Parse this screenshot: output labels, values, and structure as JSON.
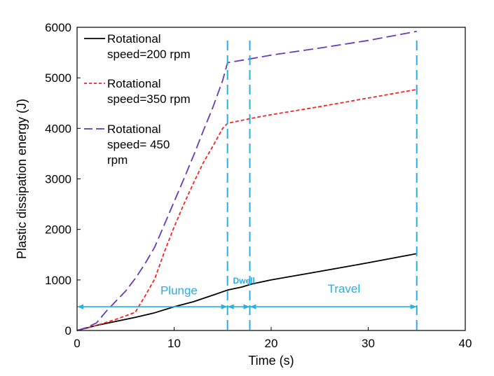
{
  "chart_data": {
    "type": "line",
    "xlabel": "Time (s)",
    "ylabel": "Plastic dissipation energy (J)",
    "xlim": [
      0,
      40
    ],
    "ylim": [
      0,
      6000
    ],
    "xticks": [
      0,
      10,
      20,
      30,
      40
    ],
    "yticks": [
      0,
      1000,
      2000,
      3000,
      4000,
      5000,
      6000
    ],
    "grid": false,
    "legend_position": "top-left",
    "series": [
      {
        "name_lines": [
          "Rotational",
          "speed=200 rpm"
        ],
        "color": "#000000",
        "dash": "solid",
        "x": [
          0,
          2,
          4,
          6,
          8,
          10,
          12,
          14,
          15.5,
          17,
          18,
          20,
          25,
          30,
          35
        ],
        "y": [
          0,
          100,
          180,
          260,
          350,
          470,
          570,
          700,
          800,
          860,
          920,
          1000,
          1170,
          1340,
          1520
        ]
      },
      {
        "name_lines": [
          "Rotational",
          "speed=350 rpm"
        ],
        "color": "#ff2020",
        "dash": "short",
        "x": [
          0,
          2,
          4,
          5,
          6,
          7,
          8,
          9,
          10,
          11,
          12,
          13,
          14,
          15,
          15.5,
          18,
          20,
          25,
          30,
          35
        ],
        "y": [
          0,
          100,
          220,
          290,
          360,
          680,
          1020,
          1560,
          2050,
          2500,
          2920,
          3320,
          3650,
          4000,
          4100,
          4200,
          4270,
          4430,
          4600,
          4770
        ]
      },
      {
        "name_lines": [
          "Rotational",
          "speed= 450",
          "rpm"
        ],
        "color": "#6a38b8",
        "dash": "long",
        "x": [
          0,
          1,
          2,
          3,
          4,
          5,
          6,
          7,
          8,
          9,
          10,
          11,
          12,
          13,
          14,
          15,
          15.5,
          18,
          20,
          25,
          30,
          35
        ],
        "y": [
          0,
          60,
          150,
          380,
          580,
          780,
          1030,
          1320,
          1650,
          2100,
          2550,
          3000,
          3460,
          3950,
          4420,
          4950,
          5300,
          5380,
          5450,
          5590,
          5740,
          5920
        ]
      }
    ],
    "phase_markers": {
      "lines_x": [
        15.5,
        17.8,
        35
      ],
      "color": "#29aee6",
      "arrow_y": 470,
      "labels": [
        {
          "text": "Plunge",
          "x": 10.5,
          "y": 800
        },
        {
          "text": "Dwell",
          "x": 17.2,
          "y": 1010
        },
        {
          "text": "Travel",
          "x": 27.5,
          "y": 830
        }
      ]
    }
  }
}
